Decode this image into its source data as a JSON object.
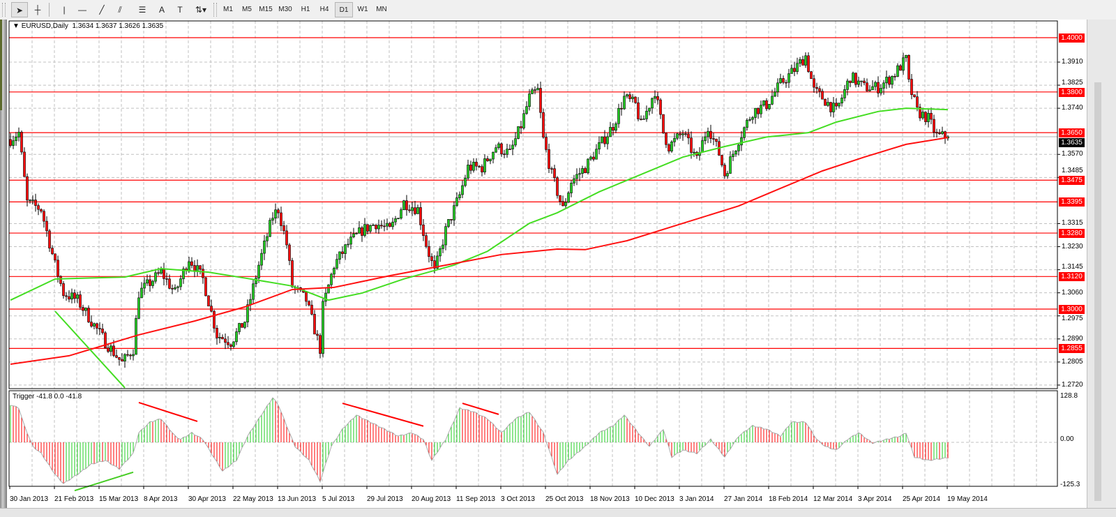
{
  "toolbar": {
    "tools": [
      {
        "name": "cursor-icon",
        "glyph": "➤"
      },
      {
        "name": "crosshair-icon",
        "glyph": "┼"
      },
      {
        "name": "vertical-line-icon",
        "glyph": "|"
      },
      {
        "name": "horizontal-line-icon",
        "glyph": "—"
      },
      {
        "name": "trendline-icon",
        "glyph": "╱"
      },
      {
        "name": "equidistant-channel-icon",
        "glyph": "⫽"
      },
      {
        "name": "fibonacci-retracement-icon",
        "glyph": "☰"
      },
      {
        "name": "text-icon",
        "glyph": "A"
      },
      {
        "name": "text-label-icon",
        "glyph": "T"
      },
      {
        "name": "arrows-dropdown-icon",
        "glyph": "⇅▾"
      }
    ],
    "periods": [
      "M1",
      "M5",
      "M15",
      "M30",
      "H1",
      "H4",
      "D1",
      "W1",
      "MN"
    ],
    "active_period": "D1"
  },
  "chart": {
    "symbol": "EURUSD,Daily",
    "ohlc": "1.3634 1.3637 1.3626 1.3635",
    "collapse_icon": "▼"
  },
  "indicator": {
    "title": "Trigger -41.8 0.0 -41.8",
    "axis": [
      "128.8",
      "0.00",
      "-125.3"
    ]
  },
  "colors": {
    "bull": "#22cc22",
    "bear": "#ff0000",
    "ma_fast": "#44dd22",
    "ma_slow": "#ff1111",
    "level": "#ff0000",
    "grid": "#c0c0c0"
  },
  "chart_data": {
    "type": "candlestick",
    "price_axis_ticks": [
      "1.3910",
      "1.3825",
      "1.3740",
      "1.3570",
      "1.3485",
      "1.3315",
      "1.3230",
      "1.3145",
      "1.3060",
      "1.2975",
      "1.2890",
      "1.2805",
      "1.2720"
    ],
    "price_range": [
      1.272,
      1.4
    ],
    "date_labels": [
      "30 Jan 2013",
      "21 Feb 2013",
      "15 Mar 2013",
      "8 Apr 2013",
      "30 Apr 2013",
      "22 May 2013",
      "13 Jun 2013",
      "5 Jul 2013",
      "29 Jul 2013",
      "20 Aug 2013",
      "11 Sep 2013",
      "3 Oct 2013",
      "25 Oct 2013",
      "18 Nov 2013",
      "10 Dec 2013",
      "3 Jan 2014",
      "27 Jan 2014",
      "18 Feb 2014",
      "12 Mar 2014",
      "3 Apr 2014",
      "25 Apr 2014",
      "19 May 2014"
    ],
    "bars_per_date_label": 16,
    "close_path": [
      [
        0,
        1.3625
      ],
      [
        3,
        1.365
      ],
      [
        6,
        1.3393
      ],
      [
        11,
        1.3368
      ],
      [
        16,
        1.3162
      ],
      [
        19,
        1.3059
      ],
      [
        24,
        1.3033
      ],
      [
        29,
        1.2956
      ],
      [
        34,
        1.2879
      ],
      [
        40,
        1.2802
      ],
      [
        44,
        1.2853
      ],
      [
        46,
        1.3059
      ],
      [
        54,
        1.3136
      ],
      [
        59,
        1.3059
      ],
      [
        64,
        1.3188
      ],
      [
        69,
        1.3111
      ],
      [
        74,
        1.2905
      ],
      [
        79,
        1.2879
      ],
      [
        84,
        1.2956
      ],
      [
        89,
        1.3162
      ],
      [
        94,
        1.3342
      ],
      [
        96,
        1.3368
      ],
      [
        99,
        1.3239
      ],
      [
        101,
        1.3085
      ],
      [
        106,
        1.3033
      ],
      [
        111,
        1.2853
      ],
      [
        112,
        1.3008
      ],
      [
        116,
        1.3162
      ],
      [
        121,
        1.3239
      ],
      [
        126,
        1.329
      ],
      [
        131,
        1.3316
      ],
      [
        136,
        1.329
      ],
      [
        141,
        1.3393
      ],
      [
        146,
        1.3368
      ],
      [
        149,
        1.3239
      ],
      [
        152,
        1.3136
      ],
      [
        156,
        1.329
      ],
      [
        161,
        1.3419
      ],
      [
        164,
        1.3522
      ],
      [
        169,
        1.3522
      ],
      [
        174,
        1.3599
      ],
      [
        179,
        1.3573
      ],
      [
        183,
        1.3676
      ],
      [
        186,
        1.3779
      ],
      [
        189,
        1.3805
      ],
      [
        191,
        1.3625
      ],
      [
        194,
        1.3496
      ],
      [
        198,
        1.3368
      ],
      [
        201,
        1.347
      ],
      [
        206,
        1.3522
      ],
      [
        211,
        1.3599
      ],
      [
        216,
        1.3676
      ],
      [
        220,
        1.3779
      ],
      [
        224,
        1.3753
      ],
      [
        226,
        1.3676
      ],
      [
        231,
        1.3805
      ],
      [
        234,
        1.365
      ],
      [
        236,
        1.3599
      ],
      [
        241,
        1.365
      ],
      [
        246,
        1.3548
      ],
      [
        250,
        1.3676
      ],
      [
        254,
        1.3573
      ],
      [
        256,
        1.3496
      ],
      [
        261,
        1.3625
      ],
      [
        266,
        1.3728
      ],
      [
        271,
        1.3753
      ],
      [
        276,
        1.383
      ],
      [
        281,
        1.3882
      ],
      [
        285,
        1.3933
      ],
      [
        288,
        1.3805
      ],
      [
        291,
        1.3779
      ],
      [
        296,
        1.3728
      ],
      [
        301,
        1.3856
      ],
      [
        306,
        1.3817
      ],
      [
        311,
        1.3817
      ],
      [
        316,
        1.3856
      ],
      [
        321,
        1.392
      ],
      [
        322,
        1.383
      ],
      [
        325,
        1.3728
      ],
      [
        329,
        1.3702
      ],
      [
        332,
        1.3638
      ],
      [
        336,
        1.3635
      ]
    ],
    "last_price": "1.3635",
    "ma_fast": [
      [
        0,
        1.3033
      ],
      [
        16,
        1.3111
      ],
      [
        41,
        1.3118
      ],
      [
        54,
        1.3149
      ],
      [
        71,
        1.3136
      ],
      [
        86,
        1.3111
      ],
      [
        101,
        1.3085
      ],
      [
        114,
        1.3033
      ],
      [
        126,
        1.3059
      ],
      [
        141,
        1.3111
      ],
      [
        159,
        1.3162
      ],
      [
        171,
        1.3213
      ],
      [
        186,
        1.3316
      ],
      [
        196,
        1.3355
      ],
      [
        211,
        1.3432
      ],
      [
        226,
        1.3496
      ],
      [
        241,
        1.356
      ],
      [
        256,
        1.3599
      ],
      [
        271,
        1.3634
      ],
      [
        286,
        1.365
      ],
      [
        296,
        1.3689
      ],
      [
        311,
        1.3728
      ],
      [
        321,
        1.374
      ],
      [
        336,
        1.3735
      ]
    ],
    "ma_slow": [
      [
        0,
        1.2797
      ],
      [
        21,
        1.2828
      ],
      [
        46,
        1.2905
      ],
      [
        66,
        1.2956
      ],
      [
        84,
        1.3008
      ],
      [
        101,
        1.3072
      ],
      [
        116,
        1.308
      ],
      [
        136,
        1.3123
      ],
      [
        156,
        1.3162
      ],
      [
        176,
        1.3201
      ],
      [
        196,
        1.3221
      ],
      [
        206,
        1.3219
      ],
      [
        221,
        1.3252
      ],
      [
        241,
        1.3316
      ],
      [
        261,
        1.338
      ],
      [
        276,
        1.3445
      ],
      [
        291,
        1.3509
      ],
      [
        306,
        1.356
      ],
      [
        321,
        1.3607
      ],
      [
        336,
        1.3632
      ]
    ],
    "levels": [
      "1.4000",
      "1.3800",
      "1.3650",
      "1.3475",
      "1.3395",
      "1.3280",
      "1.3120",
      "1.3000",
      "1.2855"
    ],
    "price_trendlines": [
      {
        "from": [
          16,
          1.2992
        ],
        "to": [
          41,
          1.271
        ],
        "color": "#44dd22"
      }
    ],
    "indicator_range": [
      -125.3,
      128.8
    ],
    "indicator_values": [
      [
        0,
        102
      ],
      [
        3,
        93
      ],
      [
        5,
        45
      ],
      [
        8,
        -11
      ],
      [
        11,
        -30
      ],
      [
        16,
        -87
      ],
      [
        19,
        -112
      ],
      [
        24,
        -87
      ],
      [
        29,
        -59
      ],
      [
        34,
        -49
      ],
      [
        39,
        -72
      ],
      [
        44,
        -30
      ],
      [
        46,
        26
      ],
      [
        50,
        55
      ],
      [
        54,
        64
      ],
      [
        59,
        17
      ],
      [
        61,
        8
      ],
      [
        65,
        26
      ],
      [
        69,
        8
      ],
      [
        72,
        -30
      ],
      [
        76,
        -78
      ],
      [
        81,
        -49
      ],
      [
        85,
        17
      ],
      [
        89,
        64
      ],
      [
        94,
        121
      ],
      [
        96,
        102
      ],
      [
        99,
        45
      ],
      [
        102,
        -11
      ],
      [
        107,
        -49
      ],
      [
        111,
        -106
      ],
      [
        115,
        -11
      ],
      [
        119,
        36
      ],
      [
        124,
        74
      ],
      [
        129,
        55
      ],
      [
        134,
        36
      ],
      [
        139,
        17
      ],
      [
        144,
        26
      ],
      [
        148,
        8
      ],
      [
        151,
        -49
      ],
      [
        156,
        8
      ],
      [
        161,
        93
      ],
      [
        166,
        83
      ],
      [
        171,
        64
      ],
      [
        176,
        26
      ],
      [
        181,
        64
      ],
      [
        186,
        83
      ],
      [
        191,
        26
      ],
      [
        196,
        -87
      ],
      [
        200,
        -49
      ],
      [
        206,
        -11
      ],
      [
        211,
        26
      ],
      [
        216,
        45
      ],
      [
        220,
        74
      ],
      [
        225,
        26
      ],
      [
        229,
        -11
      ],
      [
        234,
        36
      ],
      [
        237,
        -40
      ],
      [
        241,
        -21
      ],
      [
        246,
        -30
      ],
      [
        251,
        8
      ],
      [
        256,
        -40
      ],
      [
        261,
        17
      ],
      [
        266,
        45
      ],
      [
        271,
        36
      ],
      [
        276,
        17
      ],
      [
        280,
        55
      ],
      [
        285,
        55
      ],
      [
        289,
        8
      ],
      [
        292,
        -11
      ],
      [
        296,
        -21
      ],
      [
        300,
        8
      ],
      [
        304,
        26
      ],
      [
        309,
        -2
      ],
      [
        314,
        8
      ],
      [
        319,
        17
      ],
      [
        321,
        26
      ],
      [
        324,
        -40
      ],
      [
        329,
        -49
      ],
      [
        336,
        -41.8
      ]
    ],
    "indicator_trendlines": [
      {
        "from": [
          46,
          108
        ],
        "to": [
          67,
          57
        ],
        "color": "#ff0000"
      },
      {
        "from": [
          23,
          -131
        ],
        "to": [
          44,
          -81
        ],
        "color": "#44cc22"
      },
      {
        "from": [
          119,
          106
        ],
        "to": [
          148,
          44
        ],
        "color": "#ff0000"
      },
      {
        "from": [
          162,
          106
        ],
        "to": [
          175,
          76
        ],
        "color": "#ff0000"
      }
    ]
  }
}
